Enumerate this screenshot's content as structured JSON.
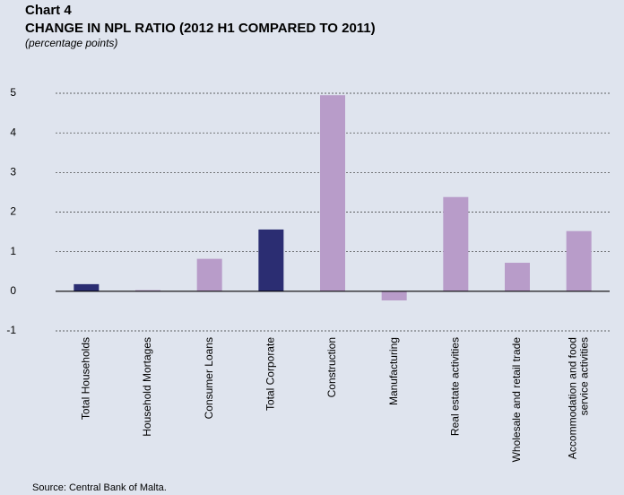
{
  "chart_data": {
    "type": "bar",
    "label": "Chart 4",
    "title": "CHANGE IN NPL RATIO (2012 H1 COMPARED TO 2011)",
    "subtitle": "(percentage points)",
    "source": "Source: Central Bank of Malta.",
    "categories": [
      "Total Households",
      "Household Mortages",
      "Consumer Loans",
      "Total Corporate",
      "Construction",
      "Manufacturing",
      "Real estate activities",
      "Wholesale and retail trade",
      [
        "Accommodation and food",
        "service activities"
      ]
    ],
    "values": [
      0.18,
      0.03,
      0.82,
      1.56,
      4.95,
      -0.23,
      2.38,
      0.72,
      1.52
    ],
    "colors": [
      "#2b2d72",
      "#b89cc9",
      "#b89cc9",
      "#2b2d72",
      "#b89cc9",
      "#b89cc9",
      "#b89cc9",
      "#b89cc9",
      "#b89cc9"
    ],
    "ylim": [
      -1,
      5
    ],
    "yticks": [
      -1,
      0,
      1,
      2,
      3,
      4,
      5
    ],
    "grid": true
  }
}
